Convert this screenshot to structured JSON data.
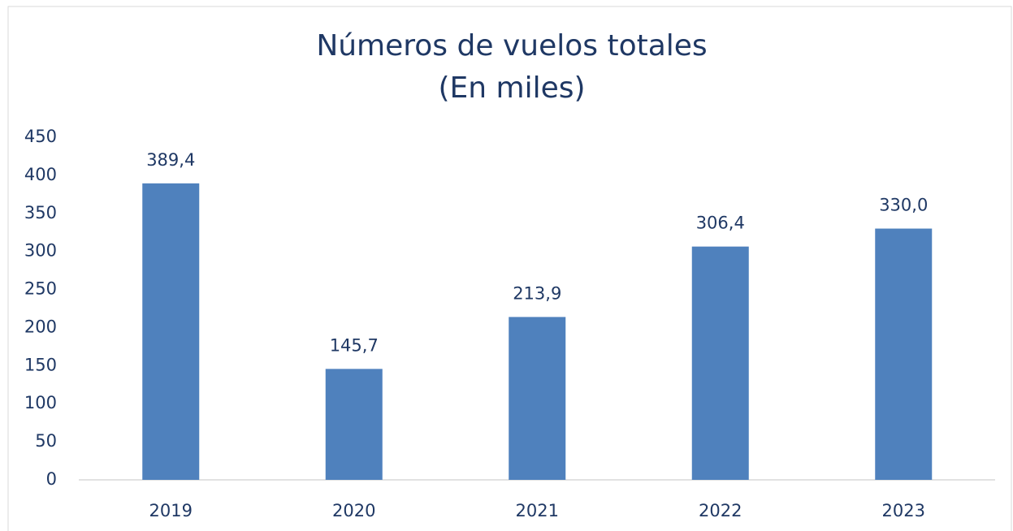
{
  "chart_data": {
    "type": "bar",
    "title": "Números de vuelos totales",
    "subtitle": "(En miles)",
    "categories": [
      "2019",
      "2020",
      "2021",
      "2022",
      "2023"
    ],
    "values": [
      389.4,
      145.7,
      213.9,
      306.4,
      330.0
    ],
    "value_labels": [
      "389,4",
      "145,7",
      "213,9",
      "306,4",
      "330,0"
    ],
    "color": "#4f81bd",
    "ylim": [
      0,
      450
    ],
    "yticks": [
      0,
      50,
      100,
      150,
      200,
      250,
      300,
      350,
      400,
      450
    ],
    "grid": false
  }
}
